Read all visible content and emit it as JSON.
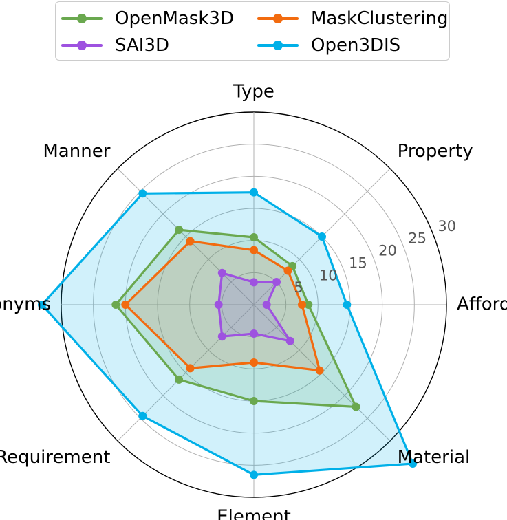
{
  "chart_data": {
    "type": "radar",
    "title": "",
    "axes": [
      "Type",
      "Property",
      "Affordance",
      "Material",
      "Element",
      "Requirement",
      "Synonyms",
      "Manner"
    ],
    "rlim": [
      0,
      30
    ],
    "radial_ticks": [
      5,
      10,
      15,
      20,
      25,
      30
    ],
    "grid": true,
    "legend_position": "top",
    "series": [
      {
        "name": "OpenMask3D",
        "color": "#6aa84f",
        "values": [
          10.5,
          8.5,
          8.5,
          22.5,
          15.0,
          16.5,
          21.5,
          16.5
        ]
      },
      {
        "name": "MaskClustering",
        "color": "#f26b0f",
        "values": [
          8.5,
          7.5,
          7.5,
          14.5,
          9.0,
          14.0,
          20.0,
          14.0
        ]
      },
      {
        "name": "SAI3D",
        "color": "#9e52e0",
        "values": [
          3.5,
          5.0,
          2.0,
          8.0,
          4.5,
          7.0,
          5.5,
          7.0
        ]
      },
      {
        "name": "Open3DIS",
        "color": "#00b0e8",
        "values": [
          17.5,
          15.0,
          14.5,
          35.0,
          26.5,
          24.5,
          33.0,
          24.5
        ]
      }
    ]
  }
}
